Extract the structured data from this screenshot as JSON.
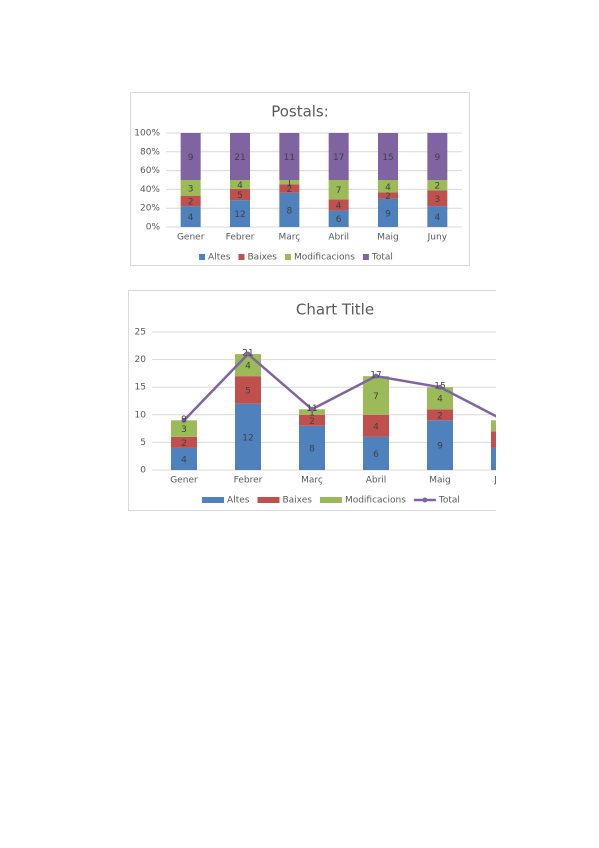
{
  "chart_data": [
    {
      "type": "bar",
      "stacking": "percent",
      "title": "Postals:",
      "categories": [
        "Gener",
        "Febrer",
        "Març",
        "Abril",
        "Maig",
        "Juny"
      ],
      "series": [
        {
          "name": "Altes",
          "color": "#4f81bd",
          "values": [
            4,
            12,
            8,
            6,
            9,
            4
          ]
        },
        {
          "name": "Baixes",
          "color": "#c0504d",
          "values": [
            2,
            5,
            2,
            4,
            2,
            3
          ]
        },
        {
          "name": "Modificacions",
          "color": "#9bbb59",
          "values": [
            3,
            4,
            1,
            7,
            4,
            2
          ]
        },
        {
          "name": "Total",
          "color": "#8064a2",
          "values": [
            9,
            21,
            11,
            17,
            15,
            9
          ]
        }
      ],
      "ylim": [
        0,
        100
      ],
      "yticks": [
        {
          "value": 0,
          "label": "0%"
        },
        {
          "value": 20,
          "label": "20%"
        },
        {
          "value": 40,
          "label": "40%"
        },
        {
          "value": 60,
          "label": "60%"
        },
        {
          "value": 80,
          "label": "80%"
        },
        {
          "value": 100,
          "label": "100%"
        }
      ],
      "grid": true,
      "legend": "bottom"
    },
    {
      "type": "bar",
      "stacking": "normal",
      "title": "Chart Title",
      "categories": [
        "Gener",
        "Febrer",
        "Març",
        "Abril",
        "Maig",
        "Juny"
      ],
      "series": [
        {
          "name": "Altes",
          "color": "#4f81bd",
          "values": [
            4,
            12,
            8,
            6,
            9,
            4
          ]
        },
        {
          "name": "Baixes",
          "color": "#c0504d",
          "values": [
            2,
            5,
            2,
            4,
            2,
            3
          ]
        },
        {
          "name": "Modificacions",
          "color": "#9bbb59",
          "values": [
            3,
            4,
            1,
            7,
            4,
            2
          ]
        },
        {
          "name": "Total",
          "type": "line",
          "color": "#8064a2",
          "values": [
            9,
            21,
            11,
            17,
            15,
            9
          ]
        }
      ],
      "ylim": [
        0,
        25
      ],
      "yticks": [
        0,
        5,
        10,
        15,
        20,
        25
      ],
      "grid": true,
      "legend": "bottom"
    }
  ]
}
